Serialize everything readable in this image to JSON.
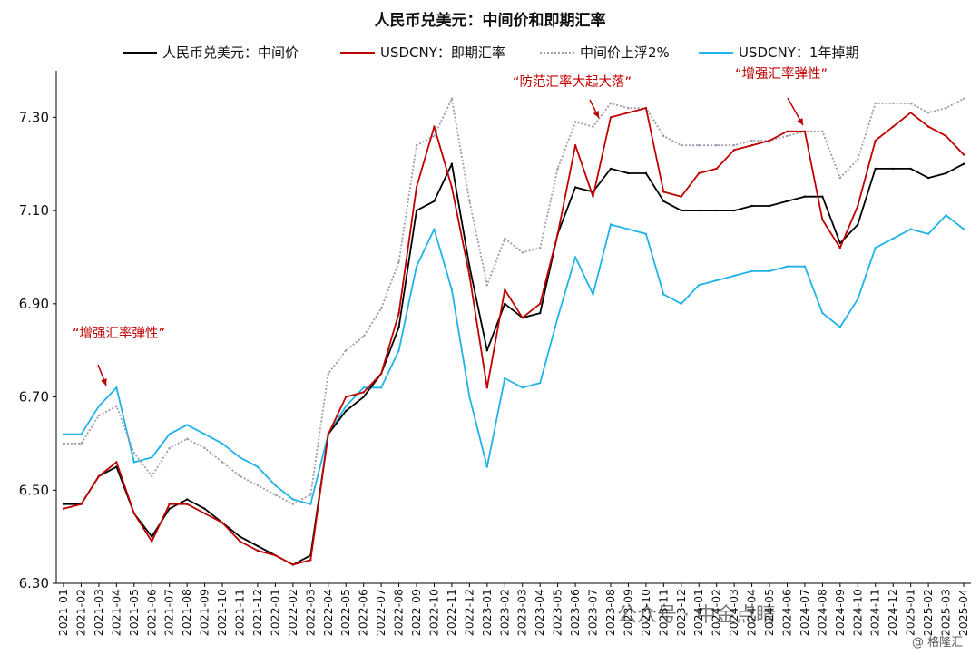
{
  "chart_data": {
    "type": "line",
    "title": "人民币兑美元：中间价和即期汇率",
    "ylim": [
      6.3,
      7.4
    ],
    "yticks": [
      "6.30",
      "6.50",
      "6.70",
      "6.90",
      "7.10",
      "7.30"
    ],
    "grid": false,
    "legend_position": "top",
    "x_labels": [
      "2021-01",
      "2021-02",
      "2021-03",
      "2021-04",
      "2021-05",
      "2021-06",
      "2021-07",
      "2021-08",
      "2021-09",
      "2021-10",
      "2021-11",
      "2021-12",
      "2022-01",
      "2022-02",
      "2022-03",
      "2022-04",
      "2022-05",
      "2022-06",
      "2022-07",
      "2022-08",
      "2022-09",
      "2022-10",
      "2022-11",
      "2022-12",
      "2023-01",
      "2023-02",
      "2023-03",
      "2023-04",
      "2023-05",
      "2023-06",
      "2023-07",
      "2023-08",
      "2023-09",
      "2023-10",
      "2023-11",
      "2023-12",
      "2024-01",
      "2024-02",
      "2024-03",
      "2024-04",
      "2024-05",
      "2024-06",
      "2024-07",
      "2024-08",
      "2024-09",
      "2024-10",
      "2024-11",
      "2024-12",
      "2025-01",
      "2025-02",
      "2025-03",
      "2025-04"
    ],
    "series": [
      {
        "name": "人民币兑美元：中间价",
        "color": "#000000",
        "style": "solid",
        "values": [
          6.47,
          6.47,
          6.53,
          6.55,
          6.45,
          6.4,
          6.46,
          6.48,
          6.46,
          6.43,
          6.4,
          6.38,
          6.36,
          6.34,
          6.36,
          6.62,
          6.67,
          6.7,
          6.75,
          6.85,
          7.1,
          7.12,
          7.2,
          6.98,
          6.8,
          6.9,
          6.87,
          6.88,
          7.05,
          7.15,
          7.14,
          7.19,
          7.18,
          7.18,
          7.12,
          7.1,
          7.1,
          7.1,
          7.1,
          7.11,
          7.11,
          7.12,
          7.13,
          7.13,
          7.03,
          7.07,
          7.19,
          7.19,
          7.19,
          7.17,
          7.18,
          7.2
        ]
      },
      {
        "name": "USDCNY：即期汇率",
        "color": "#c00000",
        "style": "solid",
        "values": [
          6.46,
          6.47,
          6.53,
          6.56,
          6.45,
          6.39,
          6.47,
          6.47,
          6.45,
          6.43,
          6.39,
          6.37,
          6.36,
          6.34,
          6.35,
          6.62,
          6.7,
          6.71,
          6.75,
          6.88,
          7.15,
          7.28,
          7.15,
          6.96,
          6.72,
          6.93,
          6.87,
          6.9,
          7.05,
          7.24,
          7.13,
          7.3,
          7.31,
          7.32,
          7.14,
          7.13,
          7.18,
          7.19,
          7.23,
          7.24,
          7.25,
          7.27,
          7.27,
          7.08,
          7.02,
          7.11,
          7.25,
          7.28,
          7.31,
          7.28,
          7.26,
          7.22
        ]
      },
      {
        "name": "中间价上浮2%",
        "color": "#9b9bb0",
        "style": "dotted",
        "values": [
          6.6,
          6.6,
          6.66,
          6.68,
          6.58,
          6.53,
          6.59,
          6.61,
          6.59,
          6.56,
          6.53,
          6.51,
          6.49,
          6.47,
          6.49,
          6.75,
          6.8,
          6.83,
          6.89,
          6.99,
          7.24,
          7.26,
          7.34,
          7.12,
          6.94,
          7.04,
          7.01,
          7.02,
          7.19,
          7.29,
          7.28,
          7.33,
          7.32,
          7.32,
          7.26,
          7.24,
          7.24,
          7.24,
          7.24,
          7.25,
          7.25,
          7.26,
          7.27,
          7.27,
          7.17,
          7.21,
          7.33,
          7.33,
          7.33,
          7.31,
          7.32,
          7.34
        ]
      },
      {
        "name": "USDCNY：1年掉期",
        "color": "#1fb3e8",
        "style": "solid",
        "values": [
          6.62,
          6.62,
          6.68,
          6.72,
          6.56,
          6.57,
          6.62,
          6.64,
          6.62,
          6.6,
          6.57,
          6.55,
          6.51,
          6.48,
          6.47,
          6.62,
          6.68,
          6.72,
          6.72,
          6.8,
          6.98,
          7.06,
          6.93,
          6.7,
          6.55,
          6.74,
          6.72,
          6.73,
          6.87,
          7.0,
          6.92,
          7.07,
          7.06,
          7.05,
          6.92,
          6.9,
          6.94,
          6.95,
          6.96,
          6.97,
          6.97,
          6.98,
          6.98,
          6.88,
          6.85,
          6.91,
          7.02,
          7.04,
          7.06,
          7.05,
          7.09,
          7.06
        ]
      }
    ],
    "annotations": [
      {
        "text": "“增强汇率弹性”",
        "x_label": "2021-03",
        "y_value": 6.77
      },
      {
        "text": "“防范汇率大起大落”",
        "x_label": "2023-08",
        "y_value": 7.39
      },
      {
        "text": "“增强汇率弹性”",
        "x_label": "2024-07",
        "y_value": 7.4
      }
    ]
  },
  "watermarks": [
    "公众号 · 中金点睛",
    "@ 格隆汇"
  ]
}
